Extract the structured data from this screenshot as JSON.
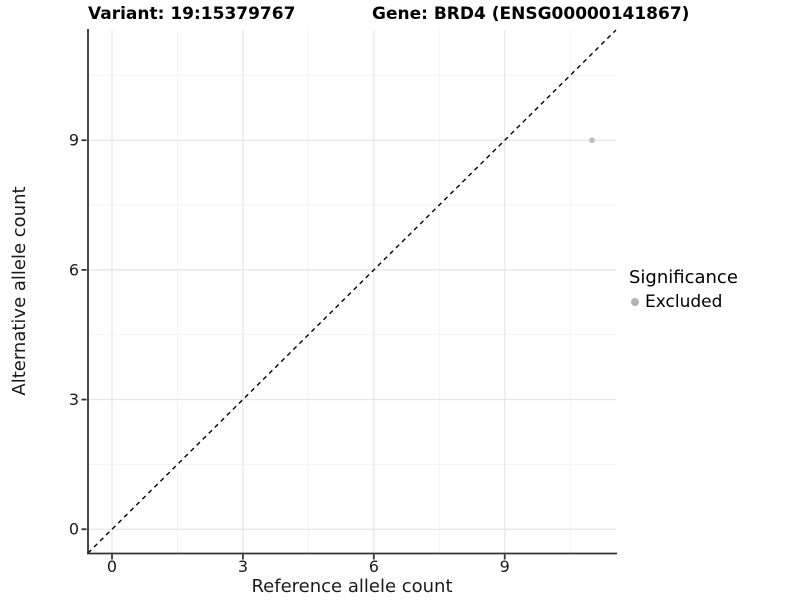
{
  "chart_data": {
    "type": "scatter",
    "title_left": "Variant: 19:15379767",
    "title_right": "Gene: BRD4 (ENSG00000141867)",
    "xlabel": "Reference allele count",
    "ylabel": "Alternative allele count",
    "xlim": [
      -0.55,
      11.55
    ],
    "ylim": [
      -0.55,
      11.55
    ],
    "x_ticks": [
      0,
      3,
      6,
      9
    ],
    "y_ticks": [
      0,
      3,
      6,
      9
    ],
    "x_minor_ticks": [
      1.5,
      4.5,
      7.5,
      10.5
    ],
    "y_minor_ticks": [
      1.5,
      4.5,
      7.5,
      10.5
    ],
    "grid": "major+minor",
    "identity_line": {
      "style": "dashed",
      "slope": 1,
      "intercept": 0,
      "color": "#000000"
    },
    "series": [
      {
        "name": "Excluded",
        "color": "#bdbdbd",
        "points": [
          {
            "x": 11,
            "y": 9
          }
        ]
      }
    ],
    "legend": {
      "title": "Significance",
      "position": "right",
      "entries": [
        {
          "label": "Excluded",
          "color": "#b3b3b3"
        }
      ]
    },
    "colors": {
      "background": "#ffffff",
      "grid_major": "#e6e6e6",
      "grid_minor": "#f2f2f2",
      "axis": "#333333",
      "tick_text": "#1a1a1a"
    }
  }
}
